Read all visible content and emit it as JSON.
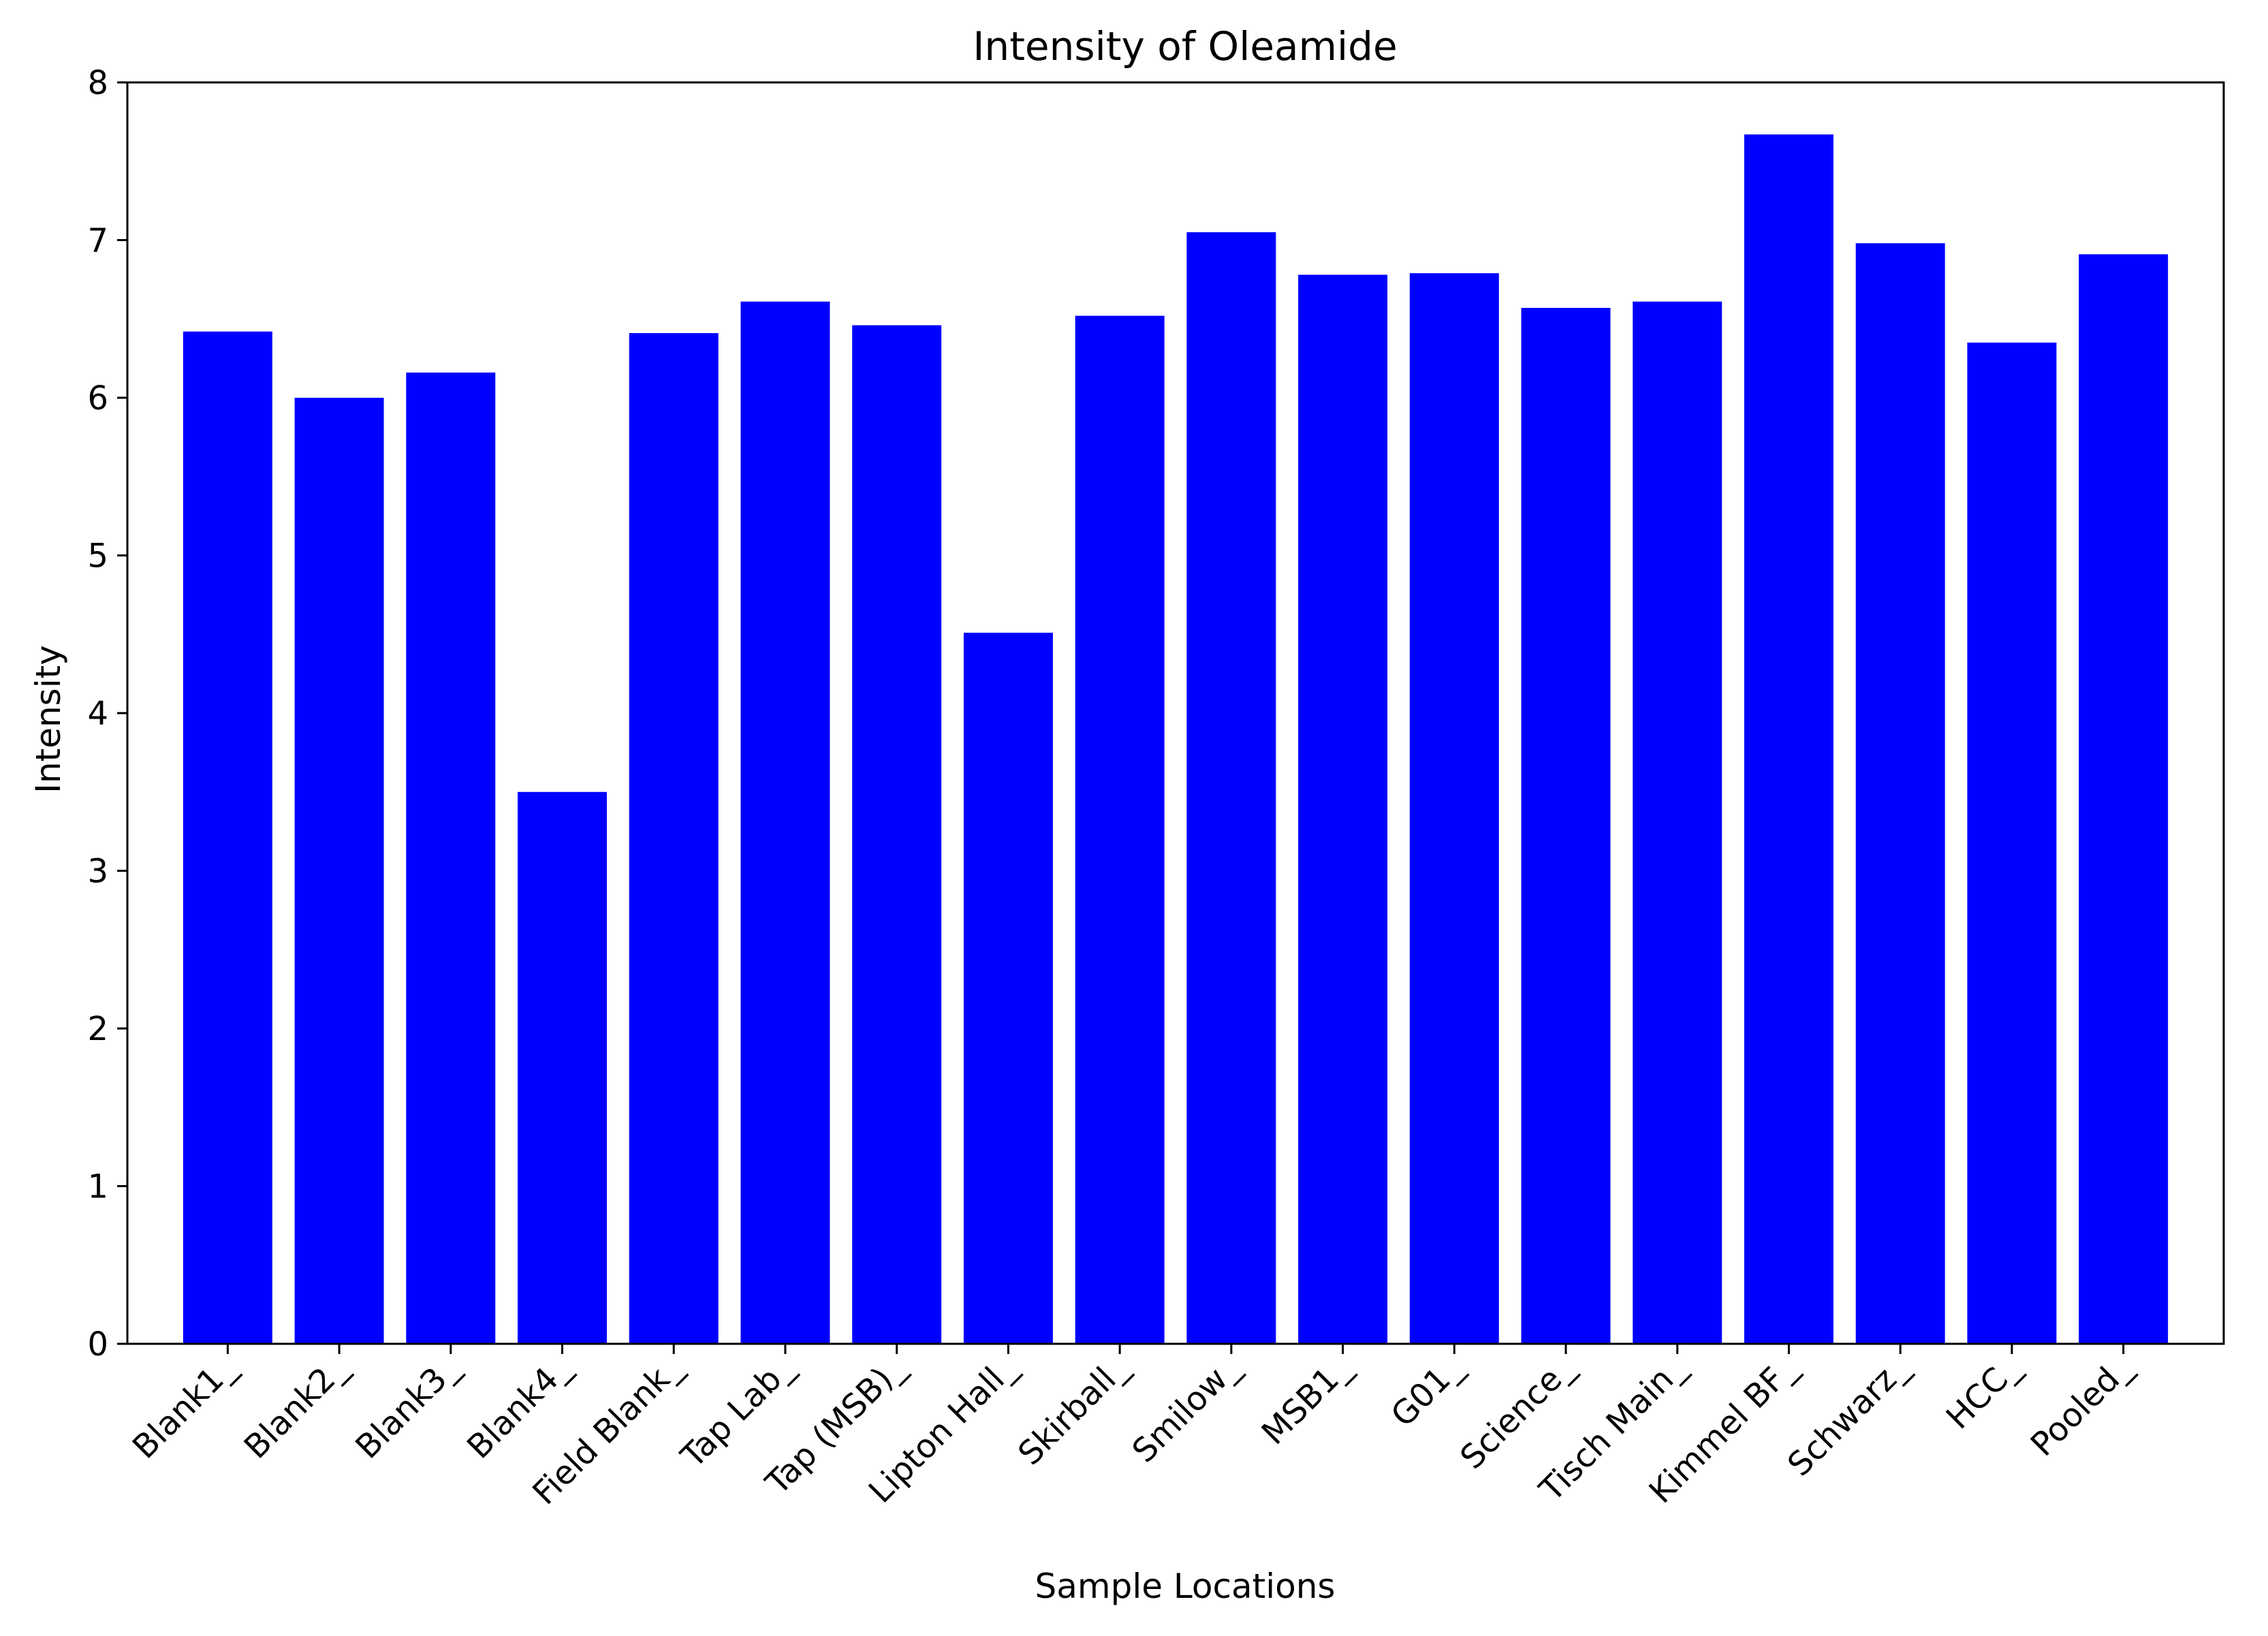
{
  "chart_data": {
    "type": "bar",
    "title": "Intensity of Oleamide",
    "xlabel": "Sample Locations",
    "ylabel": "Intensity",
    "categories": [
      "Blank1_",
      "Blank2_",
      "Blank3_",
      "Blank4_",
      "Field Blank_",
      "Tap Lab_",
      "Tap (MSB)_",
      "Lipton Hall_",
      "Skirball_",
      "Smilow_",
      "MSB1_",
      "G01_",
      "Science_",
      "Tisch Main_",
      "Kimmel BF_",
      "Schwarz_",
      "HCC_",
      "Pooled_"
    ],
    "values": [
      6.42,
      6.0,
      6.16,
      3.5,
      6.41,
      6.61,
      6.46,
      4.51,
      6.52,
      7.05,
      6.78,
      6.79,
      6.57,
      6.61,
      7.67,
      6.98,
      6.35,
      6.91
    ],
    "ylim": [
      0,
      8
    ],
    "yticks": [
      "0",
      "1",
      "2",
      "3",
      "4",
      "5",
      "6",
      "7",
      "8"
    ],
    "bar_color": "#0000ff",
    "grid": false
  }
}
